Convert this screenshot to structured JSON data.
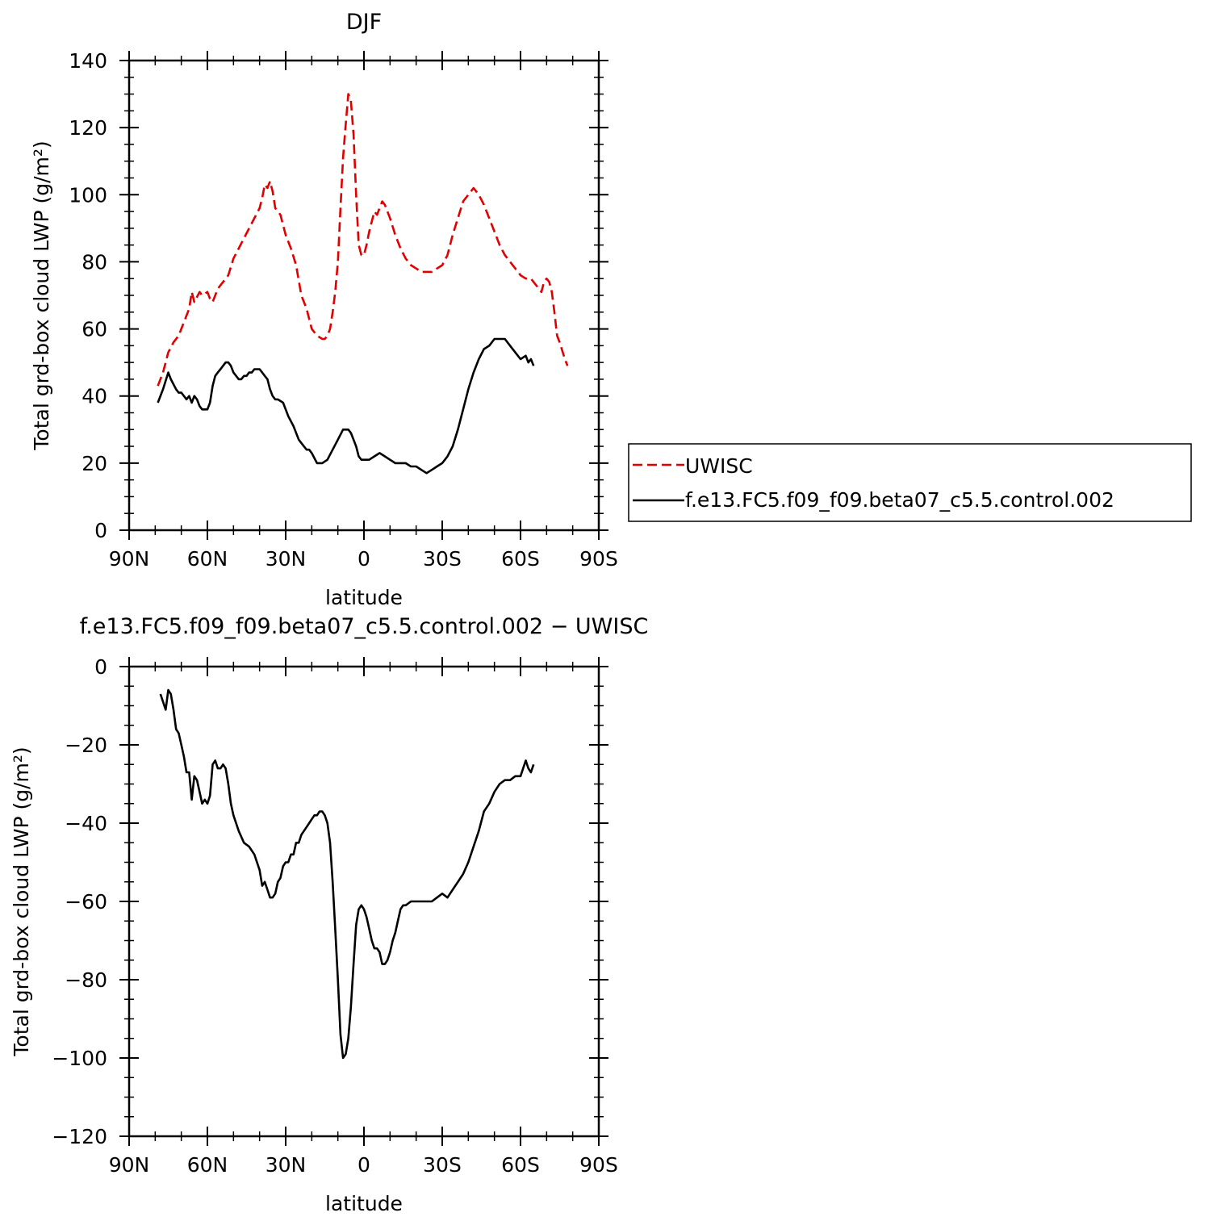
{
  "chart_data": [
    {
      "type": "line",
      "title": "DJF",
      "xlabel": "latitude",
      "ylabel": "Total grd-box cloud LWP (g/m²)",
      "xlim": [
        -90,
        90
      ],
      "ylim": [
        0,
        140
      ],
      "x_ticks": [
        -90,
        -60,
        -30,
        0,
        30,
        60,
        90
      ],
      "x_tick_labels": [
        "90N",
        "60N",
        "30N",
        "0",
        "30S",
        "60S",
        "90S"
      ],
      "y_ticks": [
        0,
        20,
        40,
        60,
        80,
        100,
        120,
        140
      ],
      "y_tick_labels": [
        "0",
        "20",
        "40",
        "60",
        "80",
        "100",
        "120",
        "140"
      ],
      "grid": false,
      "legend_position": "right",
      "series": [
        {
          "name": "UWISC",
          "color": "#e00000",
          "dash": "dashed",
          "x": [
            -79,
            -77,
            -75,
            -73,
            -71,
            -69,
            -67,
            -66,
            -65,
            -63,
            -62,
            -60,
            -59,
            -58,
            -56,
            -54,
            -52,
            -50,
            -48,
            -46,
            -44,
            -42,
            -40,
            -39,
            -38,
            -37,
            -36,
            -35,
            -34,
            -32,
            -30,
            -28,
            -26,
            -24,
            -22,
            -20,
            -18,
            -16,
            -15,
            -14,
            -13,
            -12,
            -11,
            -10,
            -9,
            -8,
            -7,
            -6,
            -5,
            -4,
            -3,
            -2,
            -1,
            0,
            1,
            2,
            3,
            4,
            5,
            6,
            7,
            8,
            9,
            10,
            12,
            14,
            16,
            18,
            20,
            22,
            24,
            26,
            28,
            30,
            32,
            34,
            36,
            38,
            40,
            42,
            44,
            46,
            48,
            50,
            52,
            54,
            56,
            58,
            60,
            62,
            64,
            66,
            68,
            69,
            70,
            71,
            72,
            73,
            74,
            75,
            77,
            78
          ],
          "values": [
            43,
            47,
            53,
            56,
            58,
            62,
            66,
            71,
            68,
            71,
            70,
            71,
            69,
            68,
            72,
            74,
            76,
            81,
            84,
            87,
            90,
            93,
            96,
            99,
            103,
            102,
            104,
            101,
            96,
            94,
            88,
            84,
            79,
            70,
            66,
            60,
            58,
            57,
            57,
            58,
            60,
            65,
            71,
            80,
            96,
            111,
            121,
            130,
            128,
            118,
            100,
            85,
            82,
            82,
            85,
            89,
            92,
            95,
            94,
            96,
            98,
            97,
            95,
            93,
            88,
            84,
            81,
            79,
            78,
            77,
            77,
            77,
            78,
            79,
            82,
            88,
            93,
            98,
            100,
            102,
            100,
            97,
            93,
            89,
            85,
            82,
            80,
            78,
            76,
            75,
            75,
            73,
            71,
            74,
            75,
            74,
            71,
            65,
            58,
            56,
            51,
            49
          ]
        },
        {
          "name": "f.e13.FC5.f09_f09.beta07_c5.5.control.002",
          "color": "#000000",
          "dash": "solid",
          "x": [
            -79,
            -77,
            -75,
            -74,
            -72,
            -71,
            -70,
            -69,
            -68,
            -67,
            -66,
            -65,
            -64,
            -63,
            -62,
            -61,
            -60,
            -59,
            -58,
            -57,
            -56,
            -55,
            -54,
            -53,
            -52,
            -51,
            -50,
            -49,
            -48,
            -47,
            -46,
            -45,
            -44,
            -43,
            -42,
            -41,
            -40,
            -39,
            -38,
            -37,
            -36,
            -35,
            -34,
            -33,
            -31,
            -30,
            -29,
            -27,
            -25,
            -23,
            -22,
            -21,
            -20,
            -18,
            -16,
            -14,
            -12,
            -10,
            -8,
            -6,
            -5,
            -4,
            -3,
            -2,
            -1,
            0,
            1,
            2,
            4,
            6,
            8,
            10,
            12,
            14,
            16,
            18,
            20,
            22,
            24,
            26,
            28,
            30,
            32,
            34,
            36,
            38,
            40,
            42,
            44,
            46,
            48,
            50,
            52,
            54,
            56,
            58,
            60,
            62,
            63,
            64,
            65
          ],
          "values": [
            38,
            42,
            47,
            45,
            42,
            41,
            41,
            40,
            39,
            40,
            38,
            40,
            39,
            37,
            36,
            36,
            36,
            38,
            43,
            46,
            47,
            48,
            49,
            50,
            50,
            49,
            47,
            46,
            45,
            45,
            46,
            46,
            47,
            47,
            48,
            48,
            48,
            47,
            46,
            45,
            42,
            40,
            39,
            39,
            38,
            36,
            34,
            31,
            27,
            25,
            24,
            24,
            23,
            20,
            20,
            21,
            24,
            27,
            30,
            30,
            29,
            27,
            25,
            22,
            21,
            21,
            21,
            21,
            22,
            23,
            22,
            21,
            20,
            20,
            20,
            19,
            19,
            18,
            17,
            18,
            19,
            20,
            22,
            25,
            30,
            36,
            42,
            47,
            51,
            54,
            55,
            57,
            57,
            57,
            55,
            53,
            51,
            52,
            50,
            51,
            49
          ]
        }
      ]
    },
    {
      "type": "line",
      "title": "f.e13.FC5.f09_f09.beta07_c5.5.control.002  −  UWISC",
      "xlabel": "latitude",
      "ylabel": "Total grd-box cloud LWP (g/m²)",
      "xlim": [
        -90,
        90
      ],
      "ylim": [
        -120,
        0
      ],
      "x_ticks": [
        -90,
        -60,
        -30,
        0,
        30,
        60,
        90
      ],
      "x_tick_labels": [
        "90N",
        "60N",
        "30N",
        "0",
        "30S",
        "60S",
        "90S"
      ],
      "y_ticks": [
        -120,
        -100,
        -80,
        -60,
        -40,
        -20,
        0
      ],
      "y_tick_labels": [
        "−120",
        "−100",
        "−80",
        "−60",
        "−40",
        "−20",
        "0"
      ],
      "grid": false,
      "series": [
        {
          "color": "#000000",
          "dash": "solid",
          "x": [
            -78,
            -76,
            -75,
            -74,
            -73,
            -72,
            -71,
            -70,
            -69,
            -68,
            -67,
            -66,
            -65,
            -64,
            -63,
            -62,
            -61,
            -60,
            -59,
            -58,
            -57,
            -56,
            -55,
            -54,
            -53,
            -52,
            -51,
            -50,
            -48,
            -46,
            -44,
            -42,
            -40,
            -39,
            -38,
            -37,
            -36,
            -35,
            -34,
            -33,
            -32,
            -31,
            -30,
            -29,
            -28,
            -27,
            -26,
            -25,
            -24,
            -23,
            -22,
            -21,
            -20,
            -19,
            -18,
            -17,
            -16,
            -15,
            -14,
            -13,
            -12,
            -11,
            -10,
            -9,
            -8,
            -7,
            -6,
            -5,
            -4,
            -3,
            -2,
            -1,
            0,
            1,
            2,
            3,
            4,
            5,
            6,
            7,
            8,
            9,
            10,
            11,
            12,
            13,
            14,
            15,
            16,
            18,
            20,
            22,
            24,
            26,
            28,
            30,
            32,
            34,
            36,
            38,
            40,
            42,
            44,
            46,
            48,
            50,
            52,
            54,
            56,
            58,
            60,
            62,
            63,
            64,
            65
          ],
          "values": [
            -7,
            -11,
            -6,
            -7,
            -11,
            -16,
            -17,
            -20,
            -23,
            -27,
            -27,
            -34,
            -28,
            -29,
            -32,
            -35,
            -34,
            -35,
            -33,
            -25,
            -24,
            -26,
            -26,
            -25,
            -26,
            -30,
            -35,
            -38,
            -42,
            -45,
            -46,
            -48,
            -52,
            -56,
            -55,
            -57,
            -59,
            -59,
            -58,
            -55,
            -54,
            -51,
            -50,
            -50,
            -48,
            -48,
            -45,
            -45,
            -43,
            -42,
            -41,
            -40,
            -39,
            -38,
            -38,
            -37,
            -37,
            -38,
            -40,
            -45,
            -55,
            -67,
            -80,
            -94,
            -100,
            -99,
            -95,
            -87,
            -76,
            -66,
            -62,
            -61,
            -62,
            -64,
            -67,
            -70,
            -72,
            -72,
            -73,
            -76,
            -76,
            -75,
            -73,
            -70,
            -68,
            -65,
            -62,
            -61,
            -61,
            -60,
            -60,
            -60,
            -60,
            -60,
            -59,
            -58,
            -59,
            -57,
            -55,
            -53,
            -50,
            -46,
            -42,
            -37,
            -35,
            -32,
            -30,
            -29,
            -29,
            -28,
            -28,
            -24,
            -26,
            -27,
            -25
          ]
        }
      ]
    }
  ]
}
